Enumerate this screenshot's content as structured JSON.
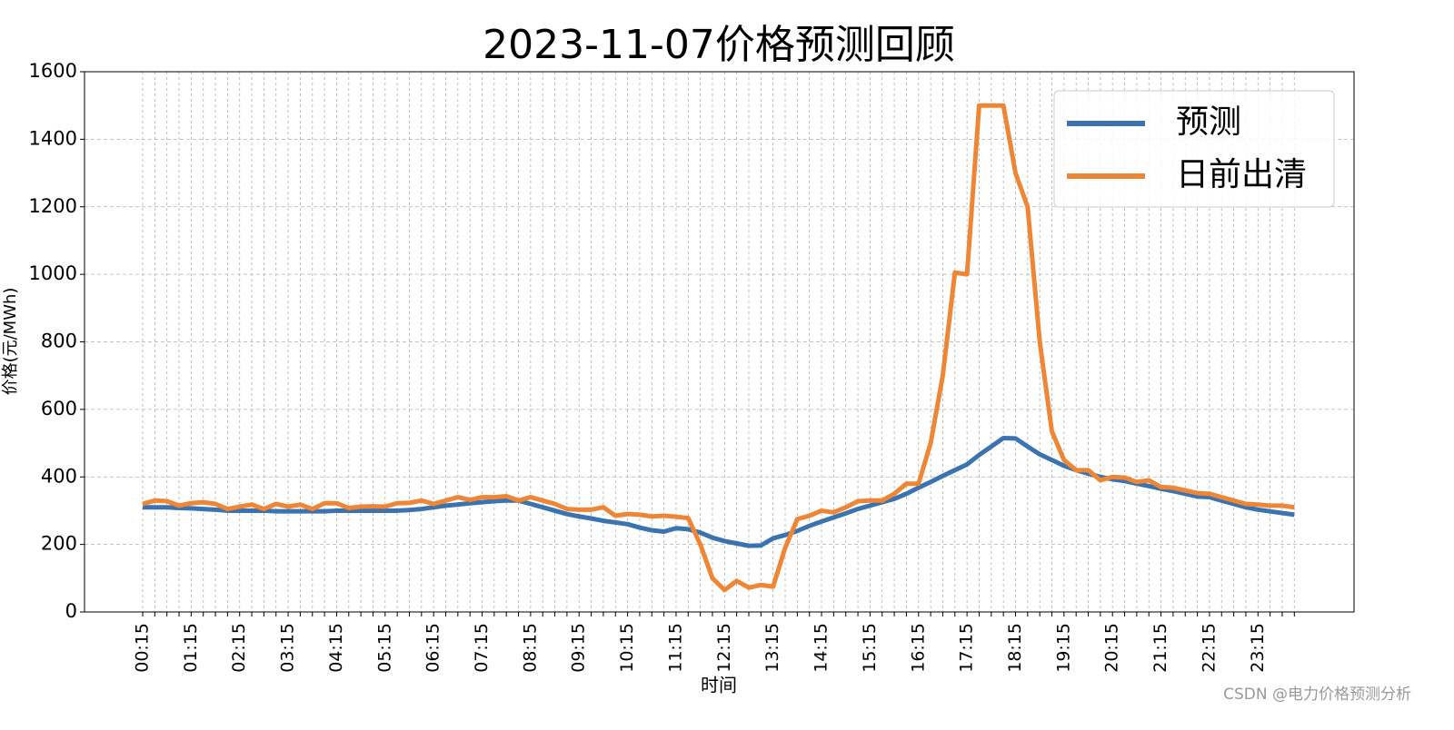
{
  "chart_data": {
    "type": "line",
    "title": "2023-11-07价格预测回顾",
    "x_label": "时间",
    "y_label": "价格(元/MWh)",
    "watermark": "CSDN @电力价格预测分析",
    "categories": [
      "00:15",
      null,
      null,
      null,
      "01:15",
      null,
      null,
      null,
      "02:15",
      null,
      null,
      null,
      "03:15",
      null,
      null,
      null,
      "04:15",
      null,
      null,
      null,
      "05:15",
      null,
      null,
      null,
      "06:15",
      null,
      null,
      null,
      "07:15",
      null,
      null,
      null,
      "08:15",
      null,
      null,
      null,
      "09:15",
      null,
      null,
      null,
      "10:15",
      null,
      null,
      null,
      "11:15",
      null,
      null,
      null,
      "12:15",
      null,
      null,
      null,
      "13:15",
      null,
      null,
      null,
      "14:15",
      null,
      null,
      null,
      "15:15",
      null,
      null,
      null,
      "16:15",
      null,
      null,
      null,
      "17:15",
      null,
      null,
      null,
      "18:15",
      null,
      null,
      null,
      "19:15",
      null,
      null,
      null,
      "20:15",
      null,
      null,
      null,
      "21:15",
      null,
      null,
      null,
      "22:15",
      null,
      null,
      null,
      "23:15",
      null,
      null,
      null
    ],
    "series": [
      {
        "name": "预测",
        "color": "#3a73b0",
        "values": [
          310,
          310,
          310,
          308,
          307,
          305,
          303,
          300,
          300,
          300,
          300,
          298,
          298,
          298,
          298,
          298,
          300,
          300,
          300,
          300,
          300,
          300,
          302,
          305,
          310,
          315,
          318,
          322,
          325,
          328,
          330,
          330,
          320,
          310,
          300,
          290,
          283,
          277,
          270,
          265,
          260,
          250,
          242,
          238,
          248,
          245,
          235,
          220,
          210,
          203,
          196,
          197,
          218,
          228,
          240,
          255,
          268,
          280,
          292,
          305,
          315,
          325,
          335,
          350,
          368,
          385,
          403,
          420,
          437,
          465,
          490,
          515,
          514,
          490,
          467,
          450,
          433,
          420,
          410,
          400,
          393,
          388,
          380,
          373,
          365,
          358,
          350,
          342,
          340,
          330,
          320,
          310,
          303,
          298,
          293,
          288
        ]
      },
      {
        "name": "日前出清",
        "color": "#ef8636",
        "values": [
          320,
          330,
          328,
          315,
          322,
          325,
          320,
          305,
          312,
          318,
          305,
          320,
          312,
          318,
          305,
          322,
          322,
          308,
          312,
          313,
          312,
          322,
          323,
          330,
          320,
          330,
          340,
          332,
          340,
          340,
          343,
          330,
          340,
          330,
          320,
          305,
          303,
          303,
          310,
          285,
          290,
          288,
          283,
          285,
          282,
          278,
          200,
          100,
          65,
          92,
          72,
          80,
          75,
          190,
          275,
          285,
          300,
          295,
          310,
          328,
          330,
          330,
          350,
          380,
          380,
          500,
          700,
          1005,
          1000,
          1500,
          1500,
          1500,
          1300,
          1200,
          800,
          535,
          450,
          420,
          420,
          390,
          400,
          398,
          385,
          390,
          370,
          368,
          360,
          352,
          350,
          340,
          330,
          320,
          318,
          315,
          315,
          310
        ]
      }
    ],
    "ylim": [
      0,
      1600
    ],
    "yticks": [
      0,
      200,
      400,
      600,
      800,
      1000,
      1200,
      1400,
      1600
    ],
    "grid": true,
    "legend": "upper right"
  }
}
